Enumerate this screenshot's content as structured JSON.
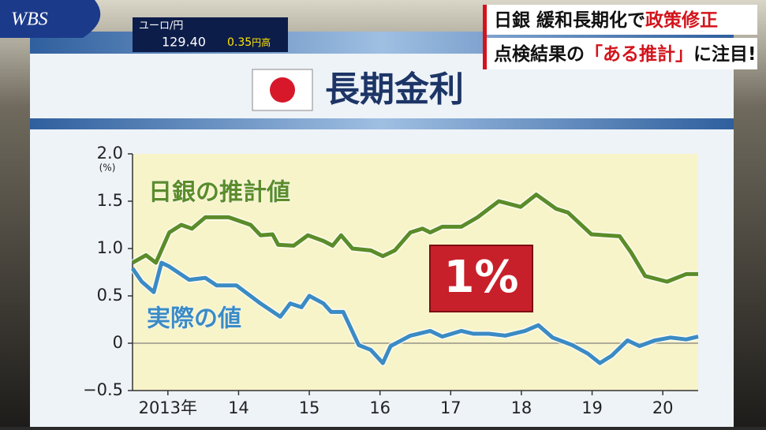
{
  "overlay": {
    "logo": "WBS",
    "ticker": {
      "pair": "ユーロ/円",
      "rate": "129.40",
      "change": "0.35",
      "change_unit": "円高"
    },
    "headline": [
      [
        {
          "text": "日銀 緩和長期化で",
          "color": "#111111"
        },
        {
          "text": "政策修正",
          "color": "#d3141c"
        }
      ],
      [
        {
          "text": "点検結果の",
          "color": "#111111"
        },
        {
          "text": "「ある推計」",
          "color": "#d3141c"
        },
        {
          "text": "に注目!",
          "color": "#111111"
        }
      ]
    ],
    "panel_title": "長期金利"
  },
  "chart_data": {
    "type": "line",
    "y_unit": "(%)",
    "xlim": [
      2013,
      2021
    ],
    "xticks": [
      {
        "value": 2013.5,
        "label": "2013年"
      },
      {
        "value": 2014.5,
        "label": "14"
      },
      {
        "value": 2015.5,
        "label": "15"
      },
      {
        "value": 2016.5,
        "label": "16"
      },
      {
        "value": 2017.5,
        "label": "17"
      },
      {
        "value": 2018.5,
        "label": "18"
      },
      {
        "value": 2019.5,
        "label": "19"
      },
      {
        "value": 2020.5,
        "label": "20"
      }
    ],
    "ylim": [
      -0.5,
      2
    ],
    "yticks": [
      {
        "value": -0.5,
        "label": "−0.5"
      },
      0,
      0.5,
      {
        "value": 1,
        "label": "1.0"
      },
      1.5,
      {
        "value": 2,
        "label": "2.0"
      }
    ],
    "zero_line": true,
    "series": [
      {
        "name": "日銀の推計値",
        "color": "#5b8c2a",
        "x": [
          2013.0,
          2013.19,
          2013.33,
          2013.52,
          2013.69,
          2013.84,
          2014.03,
          2014.36,
          2014.67,
          2014.81,
          2014.98,
          2015.06,
          2015.28,
          2015.48,
          2015.7,
          2015.83,
          2015.95,
          2016.11,
          2016.37,
          2016.54,
          2016.71,
          2016.93,
          2017.1,
          2017.21,
          2017.38,
          2017.65,
          2017.88,
          2018.18,
          2018.49,
          2018.71,
          2018.99,
          2019.16,
          2019.49,
          2019.89,
          2020.05,
          2020.25,
          2020.56,
          2020.83,
          2021.0
        ],
        "values": [
          0.85,
          0.93,
          0.85,
          1.17,
          1.25,
          1.21,
          1.33,
          1.33,
          1.25,
          1.14,
          1.15,
          1.04,
          1.03,
          1.14,
          1.08,
          1.03,
          1.14,
          1.0,
          0.98,
          0.92,
          0.98,
          1.17,
          1.21,
          1.17,
          1.23,
          1.23,
          1.33,
          1.5,
          1.44,
          1.57,
          1.42,
          1.38,
          1.15,
          1.13,
          0.96,
          0.71,
          0.65,
          0.73,
          0.73
        ]
      },
      {
        "name": "実際の値",
        "color": "#3b8bc4",
        "x": [
          2013.0,
          2013.13,
          2013.3,
          2013.41,
          2013.52,
          2013.8,
          2014.03,
          2014.19,
          2014.47,
          2014.81,
          2015.09,
          2015.23,
          2015.39,
          2015.5,
          2015.7,
          2015.81,
          2015.98,
          2016.2,
          2016.37,
          2016.54,
          2016.65,
          2016.93,
          2017.21,
          2017.38,
          2017.65,
          2017.82,
          2018.04,
          2018.27,
          2018.55,
          2018.74,
          2018.94,
          2019.22,
          2019.44,
          2019.61,
          2019.78,
          2020.0,
          2020.17,
          2020.39,
          2020.61,
          2020.83,
          2021.0
        ],
        "values": [
          0.79,
          0.65,
          0.54,
          0.85,
          0.81,
          0.67,
          0.69,
          0.61,
          0.61,
          0.42,
          0.28,
          0.42,
          0.38,
          0.5,
          0.42,
          0.33,
          0.33,
          -0.02,
          -0.07,
          -0.21,
          -0.03,
          0.08,
          0.13,
          0.07,
          0.13,
          0.1,
          0.1,
          0.08,
          0.13,
          0.19,
          0.06,
          -0.02,
          -0.11,
          -0.21,
          -0.13,
          0.03,
          -0.03,
          0.03,
          0.06,
          0.04,
          0.07
        ]
      }
    ],
    "annotations": [
      "1%"
    ]
  }
}
